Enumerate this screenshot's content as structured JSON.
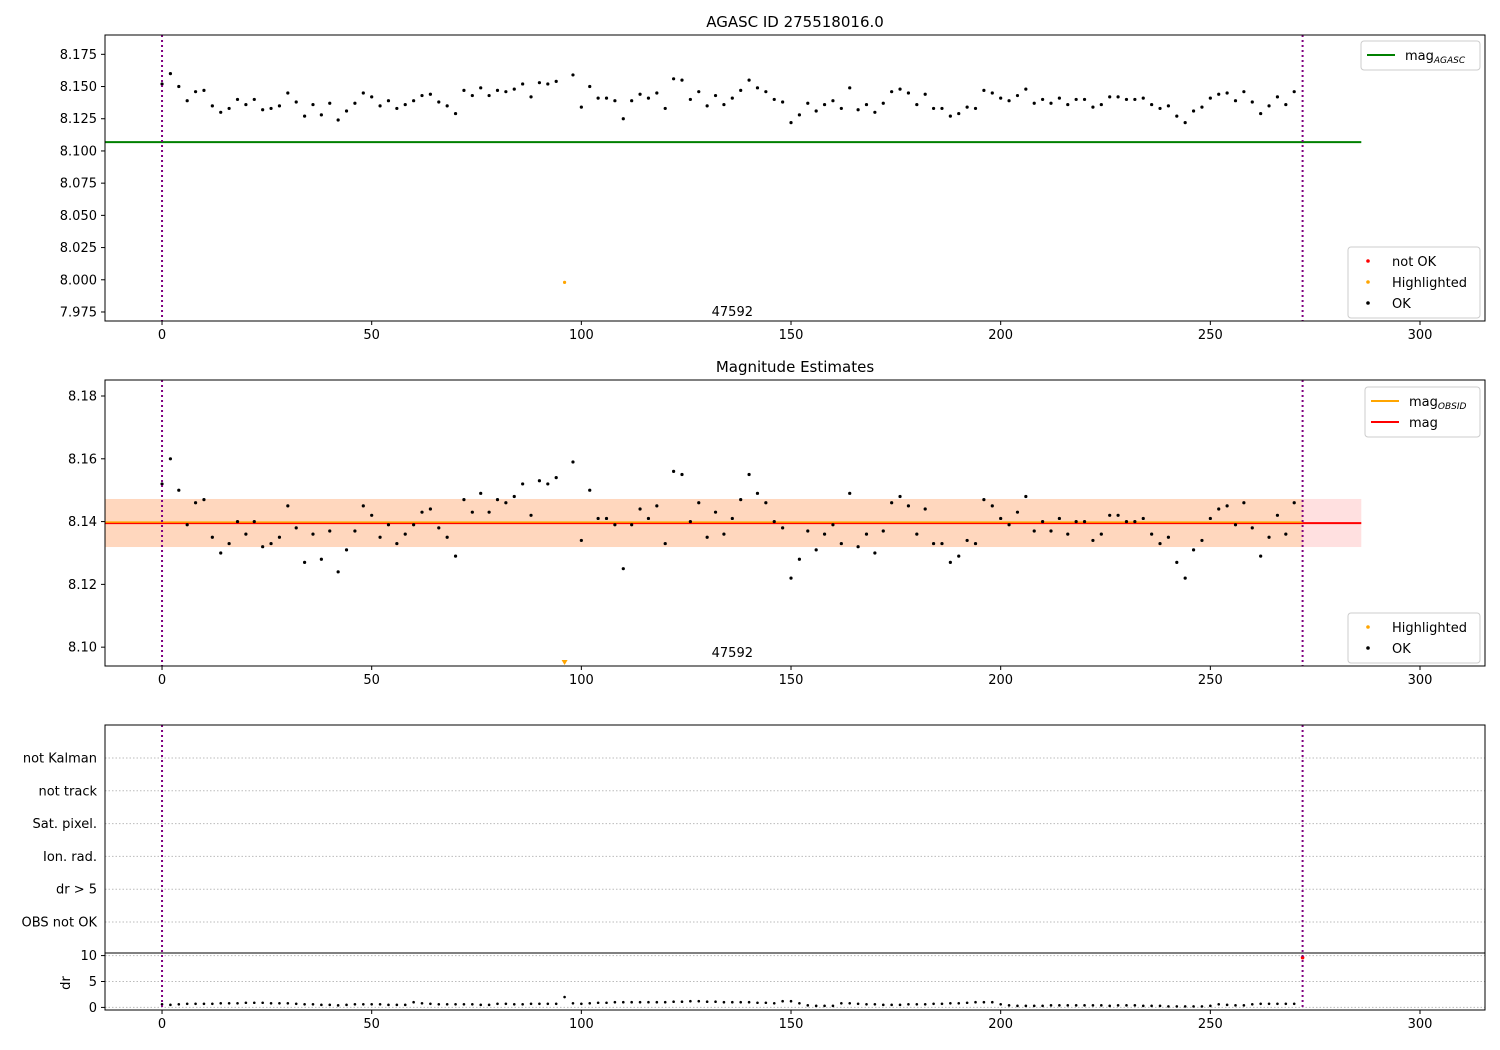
{
  "chart_data": [
    {
      "type": "scatter",
      "title": "AGASC ID 275518016.0",
      "xlim": [
        -13.6,
        315.5
      ],
      "ylim": [
        7.968,
        8.19
      ],
      "xticks": [
        0,
        50,
        100,
        150,
        200,
        250,
        300
      ],
      "yticks": [
        "7.975",
        "8.000",
        "8.025",
        "8.050",
        "8.075",
        "8.100",
        "8.125",
        "8.150",
        "8.175"
      ],
      "mag_agasc": 8.1068,
      "line_end_x": 286,
      "legend_top": [
        {
          "label": "mag",
          "sub": "AGASC",
          "color": "#008000"
        }
      ],
      "legend_bottom": [
        {
          "label": "not OK",
          "color": "#ff0000"
        },
        {
          "label": "Highlighted",
          "color": "#ffa500"
        },
        {
          "label": "OK",
          "color": "#000000"
        }
      ],
      "obsid_label": "47592",
      "obsid_label_x": 136,
      "obsid_bounds": [
        0,
        272
      ]
    },
    {
      "type": "scatter",
      "title": "Magnitude Estimates",
      "xlim": [
        -13.6,
        315.5
      ],
      "ylim": [
        8.094,
        8.1851
      ],
      "xticks": [
        0,
        50,
        100,
        150,
        200,
        250,
        300
      ],
      "yticks": [
        "8.10",
        "8.12",
        "8.14",
        "8.16",
        "8.18"
      ],
      "mag": 8.1395,
      "band": [
        8.1319,
        8.1472
      ],
      "legend_top": [
        {
          "label": "mag",
          "sub": "OBSID",
          "color": "#ffa500"
        },
        {
          "label": "mag",
          "sub": "",
          "color": "#ff0000"
        }
      ],
      "legend_bottom": [
        {
          "label": "Highlighted",
          "color": "#ffa500"
        },
        {
          "label": "OK",
          "color": "#000000"
        }
      ],
      "obsid_label": "47592"
    },
    {
      "type": "scatter",
      "flags": [
        "not Kalman",
        "not track",
        "Sat. pixel.",
        "Ion. rad.",
        "dr > 5",
        "OBS not OK"
      ],
      "ylabel": "dr",
      "dr_yticks": [
        "0",
        "5",
        "10"
      ],
      "dr_ylim": [
        -0.5,
        10.5
      ],
      "xticks": [
        0,
        50,
        100,
        150,
        200,
        250,
        300
      ]
    }
  ],
  "series": {
    "x_step": 2,
    "mag": [
      8.152,
      8.16,
      8.15,
      8.139,
      8.146,
      8.147,
      8.135,
      8.13,
      8.133,
      8.14,
      8.136,
      8.14,
      8.132,
      8.133,
      8.135,
      8.145,
      8.138,
      8.127,
      8.136,
      8.128,
      8.137,
      8.124,
      8.131,
      8.137,
      8.145,
      8.142,
      8.135,
      8.139,
      8.133,
      8.136,
      8.139,
      8.143,
      8.144,
      8.138,
      8.135,
      8.129,
      8.147,
      8.143,
      8.149,
      8.143,
      8.147,
      8.146,
      8.148,
      8.152,
      8.142,
      8.153,
      8.152,
      8.154,
      7.998,
      8.159,
      8.134,
      8.15,
      8.141,
      8.141,
      8.139,
      8.125,
      8.139,
      8.144,
      8.141,
      8.145,
      8.133,
      8.156,
      8.155,
      8.14,
      8.146,
      8.135,
      8.143,
      8.136,
      8.141,
      8.147,
      8.155,
      8.149,
      8.146,
      8.14,
      8.138,
      8.122,
      8.128,
      8.137,
      8.131,
      8.136,
      8.139,
      8.133,
      8.149,
      8.132,
      8.136,
      8.13,
      8.137,
      8.146,
      8.148,
      8.145,
      8.136,
      8.144,
      8.133,
      8.133,
      8.127,
      8.129,
      8.134,
      8.133,
      8.147,
      8.145,
      8.141,
      8.139,
      8.143,
      8.148,
      8.137,
      8.14,
      8.137,
      8.141,
      8.136,
      8.14,
      8.14,
      8.134,
      8.136,
      8.142,
      8.142,
      8.14,
      8.14,
      8.141,
      8.136,
      8.133,
      8.135,
      8.127,
      8.122,
      8.131,
      8.134,
      8.141,
      8.144,
      8.145,
      8.139,
      8.146,
      8.138,
      8.129,
      8.135,
      8.142,
      8.136,
      8.146
    ],
    "highlighted_index": 48,
    "dr": [
      0.6,
      0.5,
      0.6,
      0.7,
      0.7,
      0.7,
      0.7,
      0.8,
      0.8,
      0.8,
      0.9,
      0.9,
      0.9,
      0.8,
      0.8,
      0.8,
      0.7,
      0.6,
      0.6,
      0.5,
      0.5,
      0.4,
      0.5,
      0.6,
      0.6,
      0.6,
      0.6,
      0.5,
      0.5,
      0.5,
      1.0,
      0.8,
      0.7,
      0.6,
      0.6,
      0.6,
      0.6,
      0.6,
      0.5,
      0.5,
      0.7,
      0.7,
      0.6,
      0.6,
      0.7,
      0.7,
      0.7,
      0.7,
      2.0,
      0.8,
      0.7,
      0.8,
      0.9,
      0.9,
      1.0,
      1.0,
      1.0,
      1.0,
      1.0,
      1.0,
      1.0,
      1.1,
      1.1,
      1.2,
      1.2,
      1.1,
      1.1,
      1.0,
      1.0,
      1.0,
      1.0,
      0.9,
      0.9,
      0.8,
      1.2,
      1.2,
      0.8,
      0.4,
      0.3,
      0.3,
      0.3,
      0.8,
      0.8,
      0.7,
      0.6,
      0.6,
      0.5,
      0.5,
      0.5,
      0.6,
      0.6,
      0.6,
      0.7,
      0.7,
      0.8,
      0.8,
      0.9,
      1.0,
      1.0,
      1.0,
      0.6,
      0.4,
      0.3,
      0.3,
      0.3,
      0.3,
      0.4,
      0.4,
      0.4,
      0.4,
      0.4,
      0.4,
      0.4,
      0.3,
      0.4,
      0.4,
      0.4,
      0.3,
      0.3,
      0.3,
      0.2,
      0.2,
      0.2,
      0.2,
      0.2,
      0.3,
      0.6,
      0.5,
      0.4,
      0.4,
      0.6,
      0.7,
      0.7,
      0.7,
      0.7,
      0.7
    ],
    "not_ok_x": 272,
    "not_ok_dr": 10
  }
}
